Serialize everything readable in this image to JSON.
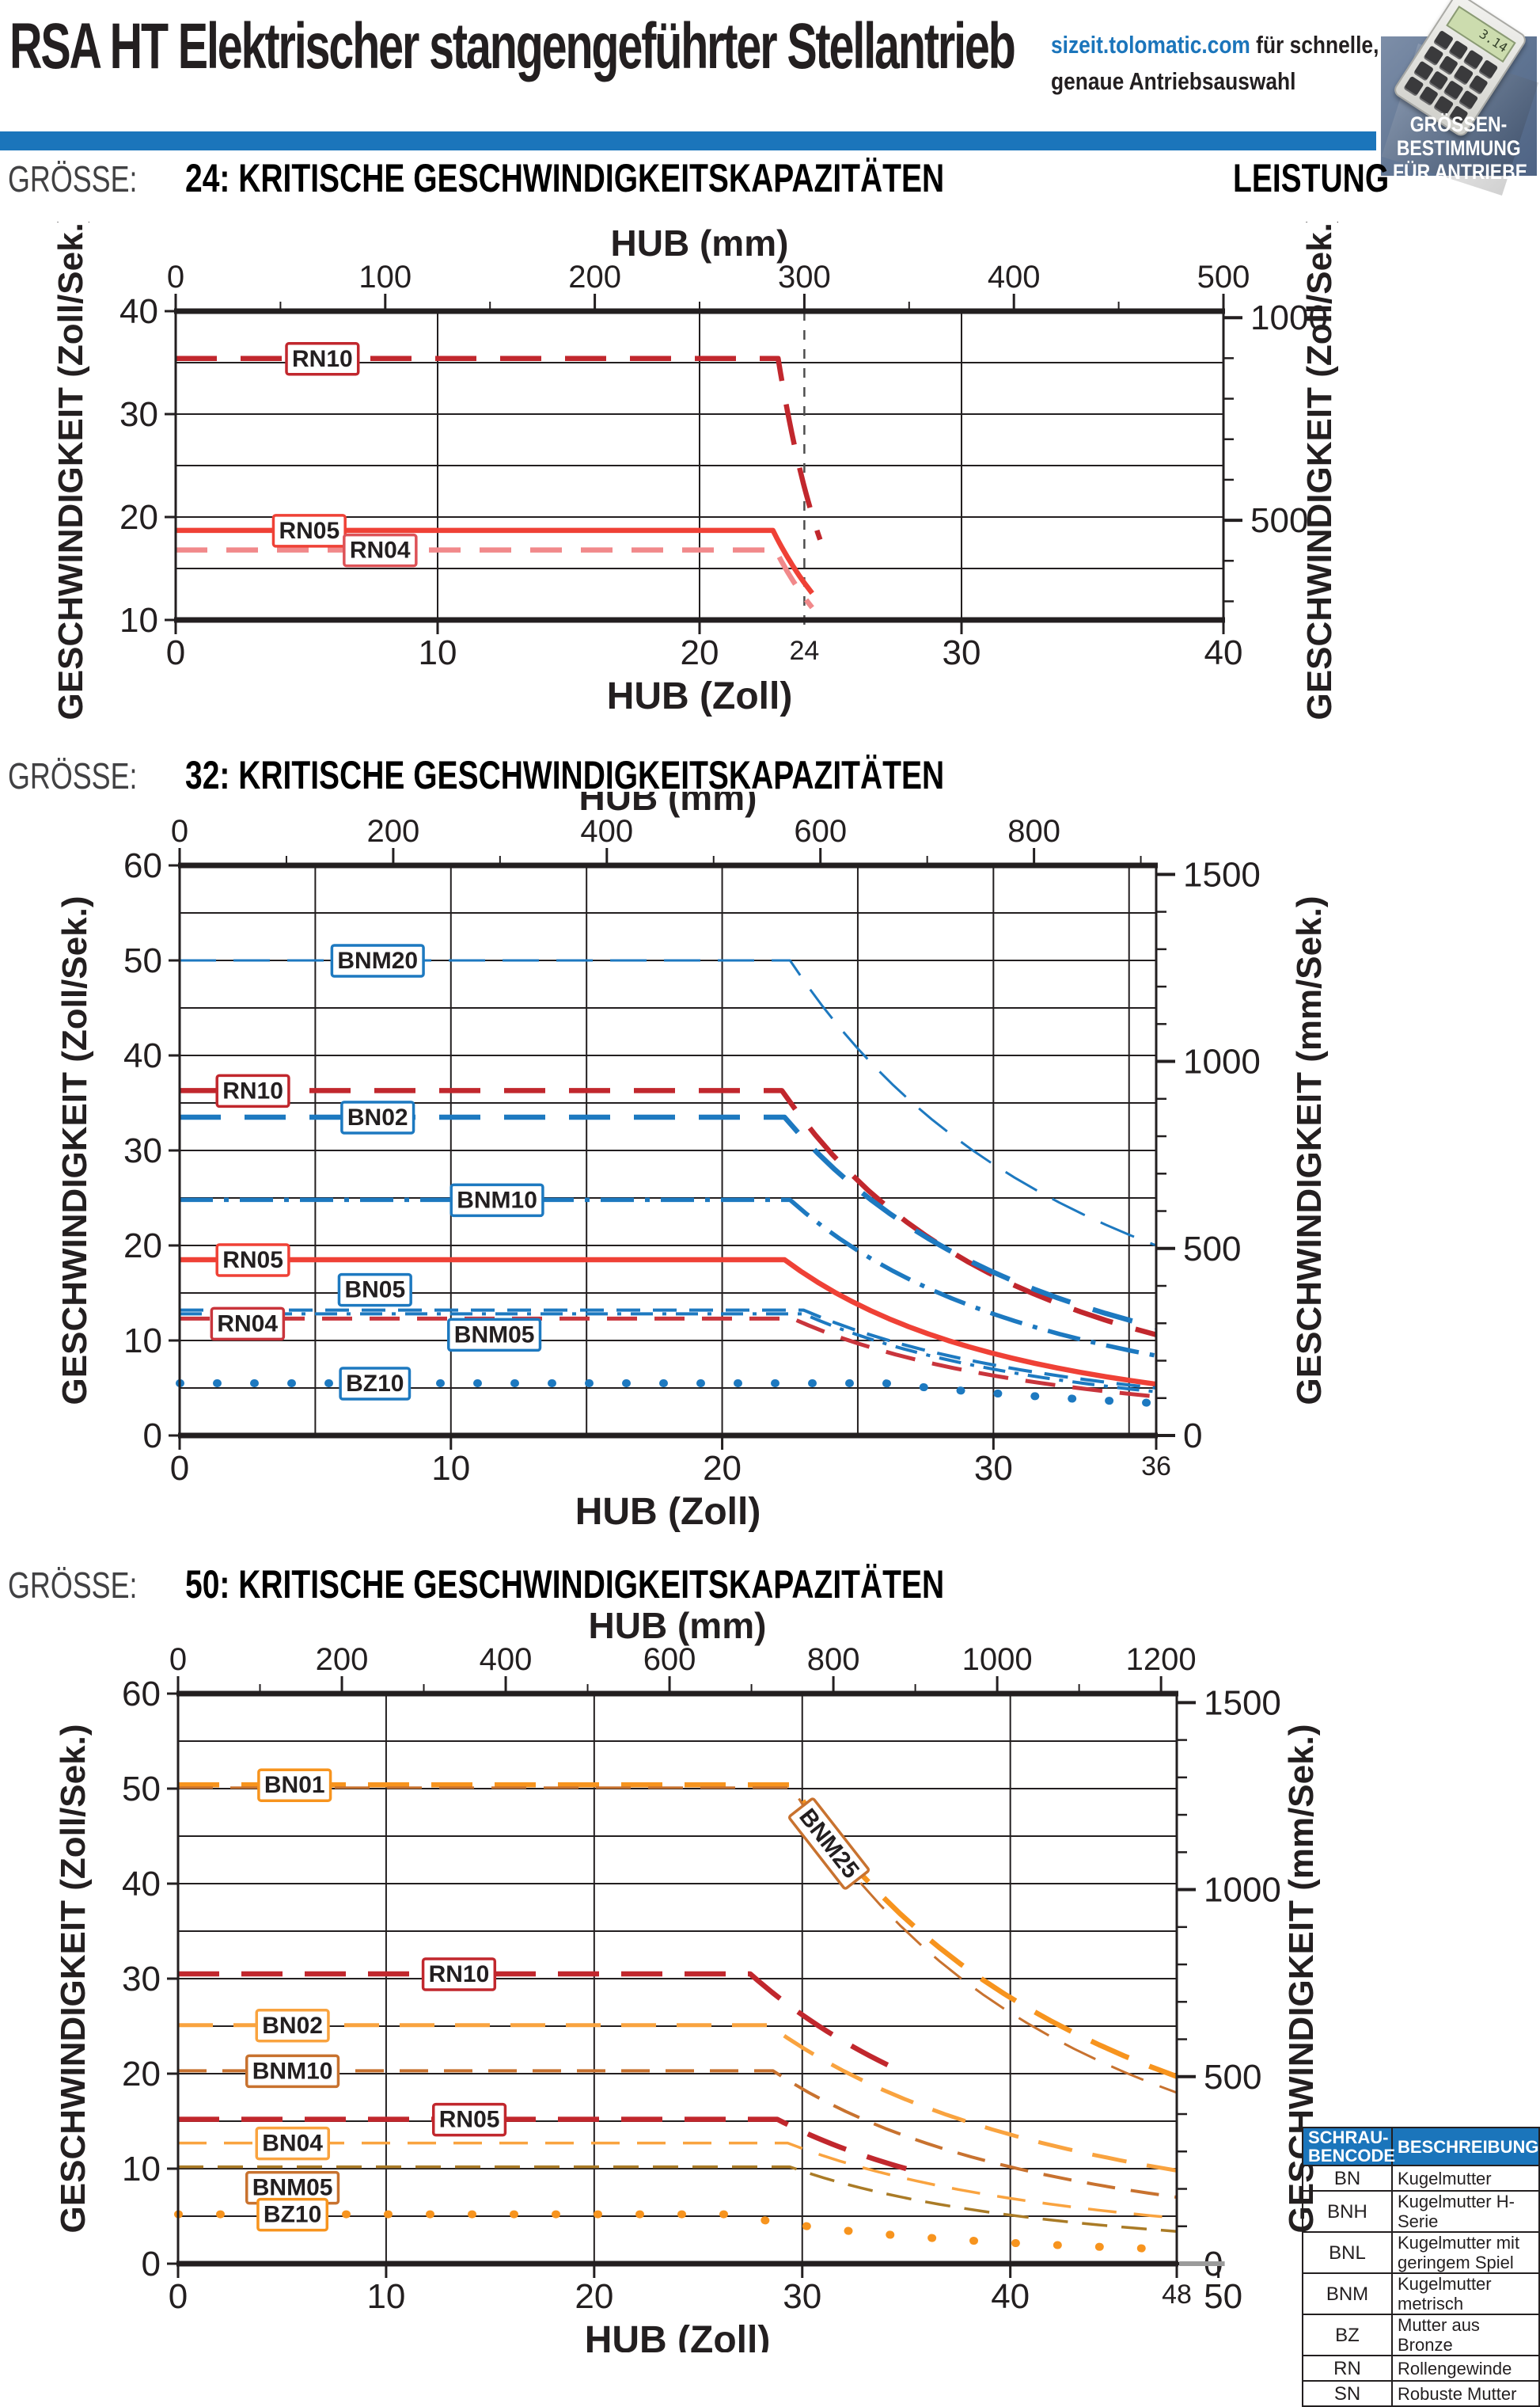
{
  "header": {
    "title": "RSA HT Elektrischer stangengeführter Stellantrieb",
    "site_link": "sizeit.tolomatic.com",
    "site_suffix": " für schnelle,",
    "site_line2": "genaue Antriebsauswahl",
    "badge_lines": [
      "GRÖSSEN-",
      "BESTIMMUNG",
      "FÜR ANTRIEBE"
    ],
    "section_extra": "LEISTUNG",
    "accent_color": "#1b75bb",
    "calc_display": "3.14"
  },
  "chart_data": [
    {
      "type": "line",
      "section_prefix": "GRÖSSE:",
      "section_title": "24: KRITISCHE GESCHWINDIGKEITSKAPAZITÄTEN",
      "top_axis": {
        "label": "HUB (mm)",
        "span_mm": 500,
        "major": 100,
        "minor": 50
      },
      "left_axis": {
        "label": "GESCHWINDIGKEIT (Zoll/Sek.)",
        "min": 10,
        "max": 40,
        "label_step": 10,
        "grid_step": 5
      },
      "right_axis": {
        "label": "GESCHWINDIGKEIT (Zoll/Sek.)",
        "labeled": [
          1000,
          500
        ],
        "minor_step": 100,
        "mm_per_unit": 25.4
      },
      "bottom_axis": {
        "label": "HUB (Zoll)",
        "max": 40,
        "labeled": [
          0,
          10,
          20,
          30,
          40
        ],
        "grid_step": 10,
        "marker": 24
      },
      "series": [
        {
          "label": "RN10",
          "color": "#c1272d",
          "width": 6.5,
          "dash": [
            52,
            30
          ],
          "flat": 35.4,
          "drop_x": 23.0,
          "end_x": 24.6,
          "end_v": 17.8,
          "label_x": 5.6,
          "label_dy": 0
        },
        {
          "label": "RN05",
          "color": "#ef4136",
          "width": 6.5,
          "dash": [],
          "flat": 18.7,
          "drop_x": 22.8,
          "end_x": 24.3,
          "end_v": 12.6,
          "label_x": 5.1,
          "label_dy": 0
        },
        {
          "label": "RN04",
          "color": "#f1898b",
          "label_color": "#dd5257",
          "width": 6.5,
          "dash": [
            40,
            24
          ],
          "flat": 16.8,
          "drop_x": 22.9,
          "end_x": 24.3,
          "end_v": 11.2,
          "label_x": 7.8,
          "label_dy": 0
        }
      ]
    },
    {
      "type": "line",
      "section_prefix": "GRÖSSE:",
      "section_title": "32: KRITISCHE GESCHWINDIGKEITSKAPAZITÄTEN",
      "top_axis": {
        "label": "HUB (mm)",
        "span_mm": 914.4,
        "major": 200,
        "minor": 100
      },
      "left_axis": {
        "label": "GESCHWINDIGKEIT (Zoll/Sek.)",
        "min": 0,
        "max": 60,
        "label_step": 10,
        "grid_step": 5
      },
      "right_axis": {
        "label": "GESCHWINDIGKEIT (mm/Sek.)",
        "labeled": [
          1500,
          1000,
          500,
          0
        ],
        "minor_step": 100,
        "mm_per_unit": 25.4
      },
      "bottom_axis": {
        "label": "HUB (Zoll)",
        "max": 36,
        "labeled": [
          0,
          10,
          20,
          30
        ],
        "grid_step": 5,
        "edge_label": 36
      },
      "series": [
        {
          "label": "BNM20",
          "color": "#1d79c0",
          "width": 3,
          "dash": [
            46,
            22
          ],
          "flat": 50.0,
          "drop_x": 22.5,
          "end_x": 36,
          "end_v": 20.0,
          "label_x": 7.3,
          "label_dy": 0
        },
        {
          "label": "RN10",
          "color": "#c1272d",
          "width": 6.5,
          "dash": [
            52,
            30
          ],
          "flat": 36.3,
          "drop_x": 22.2,
          "end_x": 36,
          "end_v": 10.6,
          "label_x": 2.7,
          "label_dy": 0
        },
        {
          "label": "BN02",
          "color": "#1d79c0",
          "width": 6.5,
          "dash": [
            52,
            30
          ],
          "flat": 33.5,
          "drop_x": 22.3,
          "end_x": 36,
          "end_v": 11.4,
          "label_x": 7.3,
          "label_dy": 0
        },
        {
          "label": "BNM10",
          "color": "#1d79c0",
          "width": 5.5,
          "dash": [
            42,
            14,
            6,
            14
          ],
          "flat": 24.8,
          "drop_x": 22.5,
          "end_x": 36,
          "end_v": 8.4,
          "label_x": 11.7,
          "label_dy": 0
        },
        {
          "label": "RN05",
          "color": "#ef4136",
          "width": 6.5,
          "dash": [],
          "flat": 18.5,
          "drop_x": 22.3,
          "end_x": 36,
          "end_v": 5.4,
          "label_x": 2.7,
          "label_dy": 0
        },
        {
          "label": "BN05",
          "color": "#1d79c0",
          "width": 4,
          "dash": [
            30,
            16
          ],
          "flat": 13.2,
          "drop_x": 23.0,
          "end_x": 36,
          "end_v": 5.0,
          "label_x": 7.2,
          "label_dy": -26
        },
        {
          "label": "RN04",
          "color": "#c9353c",
          "width": 5,
          "dash": [
            38,
            22
          ],
          "flat": 12.3,
          "drop_x": 22.6,
          "end_x": 36,
          "end_v": 4.1,
          "label_x": 2.5,
          "label_dy": 6
        },
        {
          "label": "BNM05",
          "color": "#1d79c0",
          "width": 4,
          "dash": [
            28,
            12,
            5,
            12
          ],
          "flat": 12.8,
          "drop_x": 23.0,
          "end_x": 36,
          "end_v": 4.6,
          "label_x": 11.6,
          "label_dy": 26
        },
        {
          "label": "BZ10",
          "color": "#1d79c0",
          "width": 10,
          "dash": [
            1,
            46
          ],
          "cap": "round",
          "flat": 5.5,
          "drop_x": 26.0,
          "end_x": 36,
          "end_v": 3.4,
          "label_x": 7.2,
          "label_dy": 0
        }
      ]
    },
    {
      "type": "line",
      "section_prefix": "GRÖSSE:",
      "section_title": "50: KRITISCHE GESCHWINDIGKEITSKAPAZITÄTEN",
      "top_axis": {
        "label": "HUB (mm)",
        "span_mm": 1219.2,
        "major": 200,
        "minor": 100
      },
      "left_axis": {
        "label": "GESCHWINDIGKEIT (Zoll/Sek.)",
        "min": 0,
        "max": 60,
        "label_step": 10,
        "grid_step": 5
      },
      "right_axis": {
        "label": "GESCHWINDIGKEIT (mm/Sek.)",
        "labeled": [
          1500,
          1000,
          500,
          0
        ],
        "minor_step": 100,
        "mm_per_unit": 25.4
      },
      "bottom_axis": {
        "label": "HUB (Zoll)",
        "max": 48,
        "labeled": [
          0,
          10,
          20,
          30,
          40
        ],
        "grid_step": 10,
        "edge_label": 48,
        "overhang_x": 50,
        "overhang_label": "50"
      },
      "series": [
        {
          "label": "BN01",
          "color": "#f7941e",
          "width": 6.5,
          "dash": [
            52,
            28
          ],
          "flat": 50.4,
          "drop_x": 29.5,
          "end_x": 48,
          "end_v": 19.7,
          "label_x": 5.6,
          "label_dy": 0
        },
        {
          "label": "BNM25",
          "color": "#c8722f",
          "width": 3,
          "dash": [
            44,
            22
          ],
          "flat": 50.1,
          "drop_x": 29.5,
          "end_x": 48,
          "end_v": 18.0,
          "label_x": 31.3,
          "label_dy": 0,
          "label_rotate": 52
        },
        {
          "label": "RN10",
          "color": "#c1272d",
          "width": 6.5,
          "dash": [
            52,
            28
          ],
          "flat": 30.5,
          "drop_x": 27.5,
          "end_x": 34.5,
          "end_v": 20.5,
          "label_x": 13.5,
          "label_dy": 0
        },
        {
          "label": "BN02",
          "color": "#f9a33f",
          "width": 5,
          "dash": [
            44,
            26
          ],
          "flat": 25.1,
          "drop_x": 28.4,
          "end_x": 48,
          "end_v": 9.8,
          "label_x": 5.5,
          "label_dy": 0
        },
        {
          "label": "BNM10",
          "color": "#c8722f",
          "width": 4,
          "dash": [
            36,
            20
          ],
          "flat": 20.3,
          "drop_x": 28.6,
          "end_x": 48,
          "end_v": 7.0,
          "label_x": 5.5,
          "label_dy": 0
        },
        {
          "label": "RN05",
          "color": "#c1272d",
          "width": 6.5,
          "dash": [
            52,
            28
          ],
          "flat": 15.2,
          "drop_x": 28.8,
          "end_x": 35,
          "end_v": 10.0,
          "label_x": 14.0,
          "label_dy": 0
        },
        {
          "label": "BN04",
          "color": "#f9a33f",
          "width": 3.5,
          "dash": [
            36,
            22
          ],
          "flat": 12.7,
          "drop_x": 29.3,
          "end_x": 48,
          "end_v": 4.8,
          "label_x": 5.5,
          "label_dy": 0
        },
        {
          "label": "BNM05",
          "color": "#aa7b26",
          "label_color": "#c8722f",
          "width": 3.5,
          "dash": [
            32,
            18
          ],
          "flat": 10.2,
          "drop_x": 29.4,
          "end_x": 48,
          "end_v": 3.4,
          "label_x": 5.5,
          "label_dy": 26
        },
        {
          "label": "BZ10",
          "color": "#f7941e",
          "width": 10,
          "dash": [
            1,
            52
          ],
          "cap": "round",
          "flat": 5.2,
          "drop_x": 26.5,
          "end_x": 48,
          "end_v": 1.5,
          "label_x": 5.5,
          "label_dy": 0
        }
      ]
    }
  ],
  "nut_table": {
    "header_col1": [
      "SCHRAU-",
      "BENCODE"
    ],
    "header_col2": "BESCHREIBUNG",
    "rows": [
      [
        "BN",
        "Kugelmutter"
      ],
      [
        "BNH",
        "Kugelmutter H-Serie"
      ],
      [
        "BNL",
        "Kugelmutter mit geringem Spiel"
      ],
      [
        "BNM",
        "Kugelmutter metrisch"
      ],
      [
        "BZ",
        "Mutter aus Bronze"
      ],
      [
        "RN",
        "Rollengewinde"
      ],
      [
        "SN",
        "Robuste Mutter"
      ]
    ]
  }
}
